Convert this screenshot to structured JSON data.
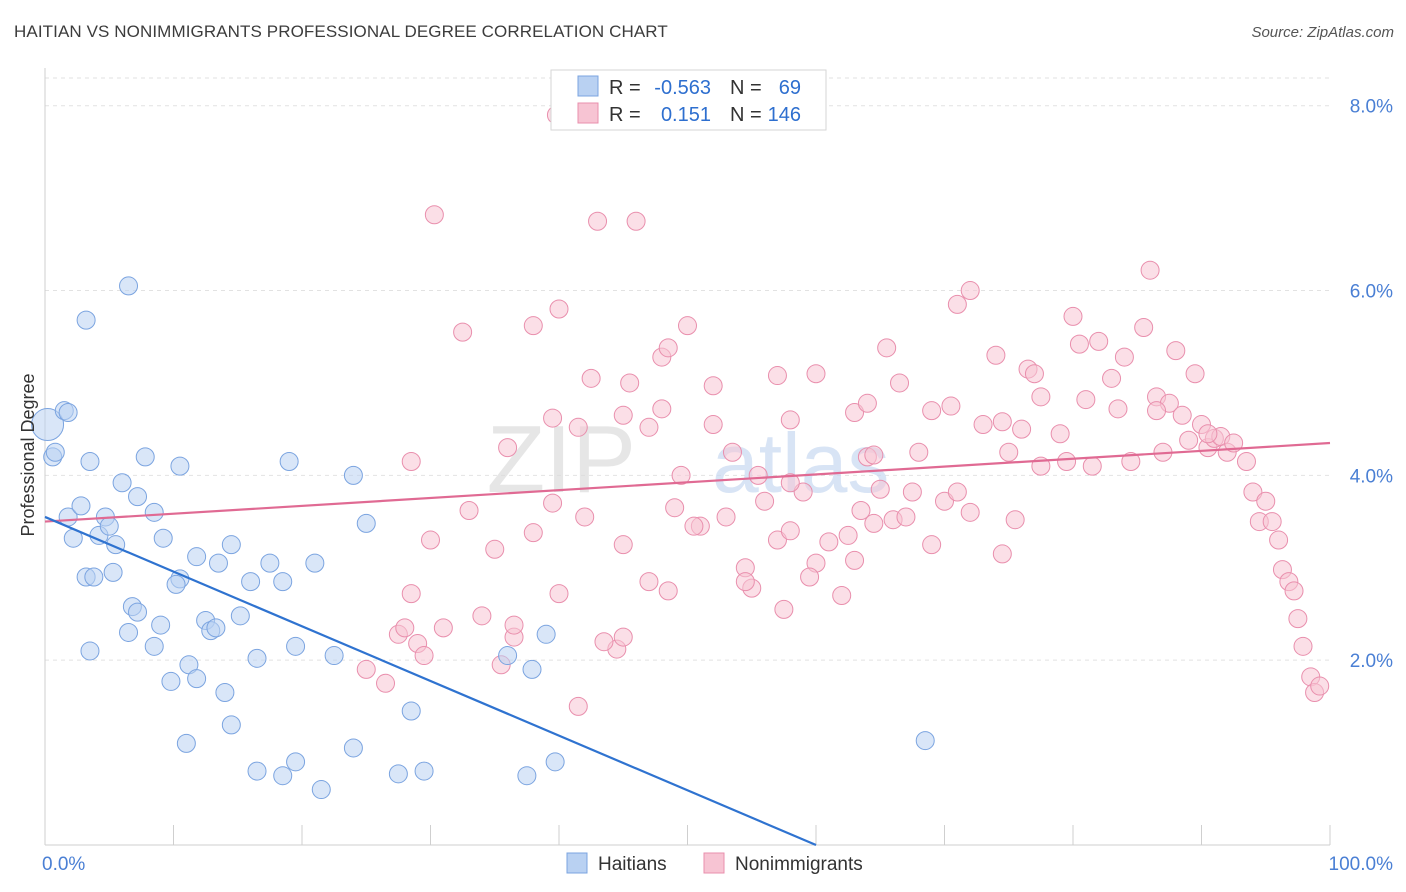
{
  "title": "HAITIAN VS NONIMMIGRANTS PROFESSIONAL DEGREE CORRELATION CHART",
  "source": "Source: ZipAtlas.com",
  "watermark": {
    "left": "ZIP",
    "right": "atlas"
  },
  "colors": {
    "haitians_fill": "#b9d1f2",
    "haitians_stroke": "#7ba4e0",
    "haitians_line": "#2f73d0",
    "nonimm_fill": "#f7c4d3",
    "nonimm_stroke": "#e98fad",
    "nonimm_line": "#e06a93",
    "grid": "#e2e2e2",
    "tick_label": "#4a7fd4"
  },
  "stats": [
    {
      "r_label": "R =",
      "r_value": "-0.563",
      "n_label": "N =",
      "n_value": "69"
    },
    {
      "r_label": "R =",
      "r_value": "0.151",
      "n_label": "N =",
      "n_value": "146"
    }
  ],
  "chart_data": {
    "type": "scatter",
    "title": "HAITIAN VS NONIMMIGRANTS PROFESSIONAL DEGREE CORRELATION CHART",
    "xlabel": "",
    "ylabel": "Professional Degree",
    "xlim": [
      0,
      100
    ],
    "ylim": [
      0,
      8.3
    ],
    "x_tick_labels": [
      {
        "value": 0,
        "label": "0.0%"
      },
      {
        "value": 100,
        "label": "100.0%"
      }
    ],
    "y_tick_labels": [
      {
        "value": 2,
        "label": "2.0%"
      },
      {
        "value": 4,
        "label": "4.0%"
      },
      {
        "value": 6,
        "label": "6.0%"
      },
      {
        "value": 8,
        "label": "8.0%"
      }
    ],
    "x_minor_ticks": [
      0,
      10,
      20,
      30,
      40,
      50,
      60,
      70,
      80,
      90,
      100
    ],
    "grid": true,
    "legend_position": "bottom-center",
    "series": [
      {
        "name": "Haitians",
        "trend": {
          "x": [
            0,
            60
          ],
          "y": [
            3.55,
            0.0
          ]
        },
        "points": [
          [
            0.2,
            4.55,
            2
          ],
          [
            0.6,
            4.2,
            1
          ],
          [
            0.8,
            4.25,
            1
          ],
          [
            1.5,
            4.7,
            1
          ],
          [
            1.8,
            4.68,
            1
          ],
          [
            3.2,
            5.68,
            1
          ],
          [
            3.5,
            4.15,
            1
          ],
          [
            6.5,
            6.05,
            1
          ],
          [
            1.8,
            3.55,
            1
          ],
          [
            2.2,
            3.32,
            1
          ],
          [
            2.8,
            3.67,
            1
          ],
          [
            3.2,
            2.9,
            1
          ],
          [
            3.8,
            2.9,
            1
          ],
          [
            4.2,
            3.35,
            1
          ],
          [
            4.7,
            3.55,
            1
          ],
          [
            5.0,
            3.45,
            1
          ],
          [
            5.5,
            3.25,
            1
          ],
          [
            6.0,
            3.92,
            1
          ],
          [
            5.3,
            2.95,
            1
          ],
          [
            7.2,
            3.77,
            1
          ],
          [
            7.8,
            4.2,
            1
          ],
          [
            8.5,
            3.6,
            1
          ],
          [
            9.2,
            3.32,
            1
          ],
          [
            10.5,
            4.1,
            1
          ],
          [
            11.8,
            3.12,
            1
          ],
          [
            13.5,
            3.05,
            1
          ],
          [
            14.5,
            3.25,
            1
          ],
          [
            15.2,
            2.48,
            1
          ],
          [
            16.0,
            2.85,
            1
          ],
          [
            16.5,
            2.02,
            1
          ],
          [
            17.5,
            3.05,
            1
          ],
          [
            18.5,
            2.85,
            1
          ],
          [
            19.0,
            4.15,
            1
          ],
          [
            19.5,
            2.15,
            1
          ],
          [
            21.0,
            3.05,
            1
          ],
          [
            22.5,
            2.05,
            1
          ],
          [
            24.0,
            1.05,
            1
          ],
          [
            24.0,
            4.0,
            1
          ],
          [
            25.0,
            3.48,
            1
          ],
          [
            6.8,
            2.58,
            1
          ],
          [
            7.2,
            2.52,
            1
          ],
          [
            6.5,
            2.3,
            1
          ],
          [
            8.5,
            2.15,
            1
          ],
          [
            9.0,
            2.38,
            1
          ],
          [
            9.8,
            1.77,
            1
          ],
          [
            10.5,
            2.88,
            1
          ],
          [
            11.2,
            1.95,
            1
          ],
          [
            11.8,
            1.8,
            1
          ],
          [
            12.5,
            2.43,
            1
          ],
          [
            12.9,
            2.32,
            1
          ],
          [
            13.3,
            2.35,
            1
          ],
          [
            14.0,
            1.65,
            1
          ],
          [
            14.5,
            1.3,
            1
          ],
          [
            10.2,
            2.82,
            1
          ],
          [
            3.5,
            2.1,
            1
          ],
          [
            11.0,
            1.1,
            1
          ],
          [
            16.5,
            0.8,
            1
          ],
          [
            18.5,
            0.75,
            1
          ],
          [
            19.5,
            0.9,
            1
          ],
          [
            21.5,
            0.6,
            1
          ],
          [
            27.5,
            0.77,
            1
          ],
          [
            28.5,
            1.45,
            1
          ],
          [
            29.5,
            0.8,
            1
          ],
          [
            36.0,
            2.05,
            1
          ],
          [
            37.5,
            0.75,
            1
          ],
          [
            37.9,
            1.9,
            1
          ],
          [
            39.0,
            2.28,
            1
          ],
          [
            39.7,
            0.9,
            1
          ],
          [
            68.5,
            1.13,
            1
          ]
        ]
      },
      {
        "name": "Nonimmigrants",
        "trend": {
          "x": [
            0,
            100
          ],
          "y": [
            3.5,
            4.35
          ]
        },
        "points": [
          [
            39.8,
            7.9,
            1
          ],
          [
            30.3,
            6.82,
            1
          ],
          [
            43.0,
            6.75,
            1
          ],
          [
            46.0,
            6.75,
            1
          ],
          [
            32.5,
            5.55,
            1
          ],
          [
            38.0,
            5.62,
            1
          ],
          [
            40.0,
            5.8,
            1
          ],
          [
            42.5,
            5.05,
            1
          ],
          [
            45.5,
            5.0,
            1
          ],
          [
            48.0,
            5.28,
            1
          ],
          [
            48.5,
            5.38,
            1
          ],
          [
            50.0,
            5.62,
            1
          ],
          [
            52.0,
            4.97,
            1
          ],
          [
            57.0,
            5.08,
            1
          ],
          [
            60.0,
            5.1,
            1
          ],
          [
            65.5,
            5.38,
            1
          ],
          [
            66.5,
            5.0,
            1
          ],
          [
            71.0,
            5.85,
            1
          ],
          [
            72.0,
            6.0,
            1
          ],
          [
            74.0,
            5.3,
            1
          ],
          [
            76.5,
            5.15,
            1
          ],
          [
            77.0,
            5.1,
            1
          ],
          [
            80.0,
            5.72,
            1
          ],
          [
            80.5,
            5.42,
            1
          ],
          [
            82.0,
            5.45,
            1
          ],
          [
            83.0,
            5.05,
            1
          ],
          [
            84.0,
            5.28,
            1
          ],
          [
            85.5,
            5.6,
            1
          ],
          [
            86.5,
            4.85,
            1
          ],
          [
            87.5,
            4.78,
            1
          ],
          [
            88.0,
            5.35,
            1
          ],
          [
            88.5,
            4.65,
            1
          ],
          [
            89.0,
            4.38,
            1
          ],
          [
            89.5,
            5.1,
            1
          ],
          [
            90.0,
            4.55,
            1
          ],
          [
            90.5,
            4.3,
            1
          ],
          [
            91.0,
            4.4,
            1
          ],
          [
            91.5,
            4.42,
            1
          ],
          [
            92.0,
            4.25,
            1
          ],
          [
            92.5,
            4.35,
            1
          ],
          [
            93.5,
            4.15,
            1
          ],
          [
            94.0,
            3.82,
            1
          ],
          [
            94.5,
            3.5,
            1
          ],
          [
            95.0,
            3.72,
            1
          ],
          [
            95.5,
            3.5,
            1
          ],
          [
            96.0,
            3.3,
            1
          ],
          [
            96.3,
            2.98,
            1
          ],
          [
            96.8,
            2.85,
            1
          ],
          [
            97.2,
            2.75,
            1
          ],
          [
            97.5,
            2.45,
            1
          ],
          [
            97.9,
            2.15,
            1
          ],
          [
            98.5,
            1.82,
            1
          ],
          [
            98.8,
            1.65,
            1
          ],
          [
            99.2,
            1.72,
            1
          ],
          [
            86.0,
            6.22,
            1
          ],
          [
            86.5,
            4.7,
            1
          ],
          [
            36.0,
            4.3,
            1
          ],
          [
            39.5,
            4.62,
            1
          ],
          [
            41.5,
            4.52,
            1
          ],
          [
            45.0,
            4.65,
            1
          ],
          [
            47.0,
            4.52,
            1
          ],
          [
            48.0,
            4.72,
            1
          ],
          [
            49.5,
            4.0,
            1
          ],
          [
            52.0,
            4.55,
            1
          ],
          [
            53.5,
            4.25,
            1
          ],
          [
            55.5,
            4.0,
            1
          ],
          [
            58.0,
            4.6,
            1
          ],
          [
            63.0,
            4.68,
            1
          ],
          [
            64.0,
            4.78,
            1
          ],
          [
            68.0,
            4.25,
            1
          ],
          [
            70.5,
            4.75,
            1
          ],
          [
            73.0,
            4.55,
            1
          ],
          [
            74.5,
            4.58,
            1
          ],
          [
            76.0,
            4.5,
            1
          ],
          [
            77.5,
            4.85,
            1
          ],
          [
            79.0,
            4.45,
            1
          ],
          [
            81.0,
            4.82,
            1
          ],
          [
            83.5,
            4.72,
            1
          ],
          [
            30.0,
            3.3,
            1
          ],
          [
            33.0,
            3.62,
            1
          ],
          [
            35.0,
            3.2,
            1
          ],
          [
            38.0,
            3.38,
            1
          ],
          [
            39.5,
            3.7,
            1
          ],
          [
            42.0,
            3.55,
            1
          ],
          [
            45.0,
            3.25,
            1
          ],
          [
            49.0,
            3.65,
            1
          ],
          [
            51.0,
            3.45,
            1
          ],
          [
            53.0,
            3.55,
            1
          ],
          [
            54.5,
            3.0,
            1
          ],
          [
            55.0,
            2.78,
            1
          ],
          [
            56.0,
            3.72,
            1
          ],
          [
            57.0,
            3.3,
            1
          ],
          [
            58.0,
            3.4,
            1
          ],
          [
            59.0,
            3.82,
            1
          ],
          [
            60.0,
            3.05,
            1
          ],
          [
            61.0,
            3.28,
            1
          ],
          [
            62.5,
            3.35,
            1
          ],
          [
            63.5,
            3.62,
            1
          ],
          [
            64.0,
            4.2,
            1
          ],
          [
            64.5,
            4.22,
            1
          ],
          [
            65.0,
            3.85,
            1
          ],
          [
            66.0,
            3.52,
            1
          ],
          [
            67.5,
            3.82,
            1
          ],
          [
            69.0,
            3.25,
            1
          ],
          [
            70.0,
            3.72,
            1
          ],
          [
            71.0,
            3.82,
            1
          ],
          [
            72.0,
            3.6,
            1
          ],
          [
            74.5,
            3.15,
            1
          ],
          [
            75.5,
            3.52,
            1
          ],
          [
            25.0,
            1.9,
            1
          ],
          [
            26.5,
            1.75,
            1
          ],
          [
            27.5,
            2.28,
            1
          ],
          [
            28.0,
            2.35,
            1
          ],
          [
            28.5,
            2.72,
            1
          ],
          [
            29.0,
            2.18,
            1
          ],
          [
            29.5,
            2.05,
            1
          ],
          [
            31.0,
            2.35,
            1
          ],
          [
            34.0,
            2.48,
            1
          ],
          [
            35.5,
            1.95,
            1
          ],
          [
            36.5,
            2.25,
            1
          ],
          [
            40.0,
            2.72,
            1
          ],
          [
            41.5,
            1.5,
            1
          ],
          [
            44.5,
            2.12,
            1
          ],
          [
            45.0,
            2.25,
            1
          ],
          [
            47.0,
            2.85,
            1
          ],
          [
            48.5,
            2.75,
            1
          ],
          [
            54.5,
            2.85,
            1
          ],
          [
            57.5,
            2.55,
            1
          ],
          [
            59.5,
            2.9,
            1
          ],
          [
            62.0,
            2.7,
            1
          ],
          [
            63.0,
            3.08,
            1
          ],
          [
            28.5,
            4.15,
            1
          ],
          [
            36.5,
            2.38,
            1
          ],
          [
            64.5,
            3.48,
            1
          ],
          [
            75.0,
            4.25,
            1
          ],
          [
            69.0,
            4.7,
            1
          ],
          [
            79.5,
            4.15,
            1
          ],
          [
            81.5,
            4.1,
            1
          ],
          [
            84.5,
            4.15,
            1
          ],
          [
            87.0,
            4.25,
            1
          ],
          [
            90.5,
            4.45,
            1
          ],
          [
            77.5,
            4.1,
            1
          ],
          [
            67.0,
            3.55,
            1
          ],
          [
            43.5,
            2.2,
            1
          ],
          [
            58.0,
            3.92,
            1
          ],
          [
            50.5,
            3.45,
            1
          ]
        ]
      }
    ]
  },
  "legend": [
    {
      "label": "Haitians"
    },
    {
      "label": "Nonimmigrants"
    }
  ]
}
